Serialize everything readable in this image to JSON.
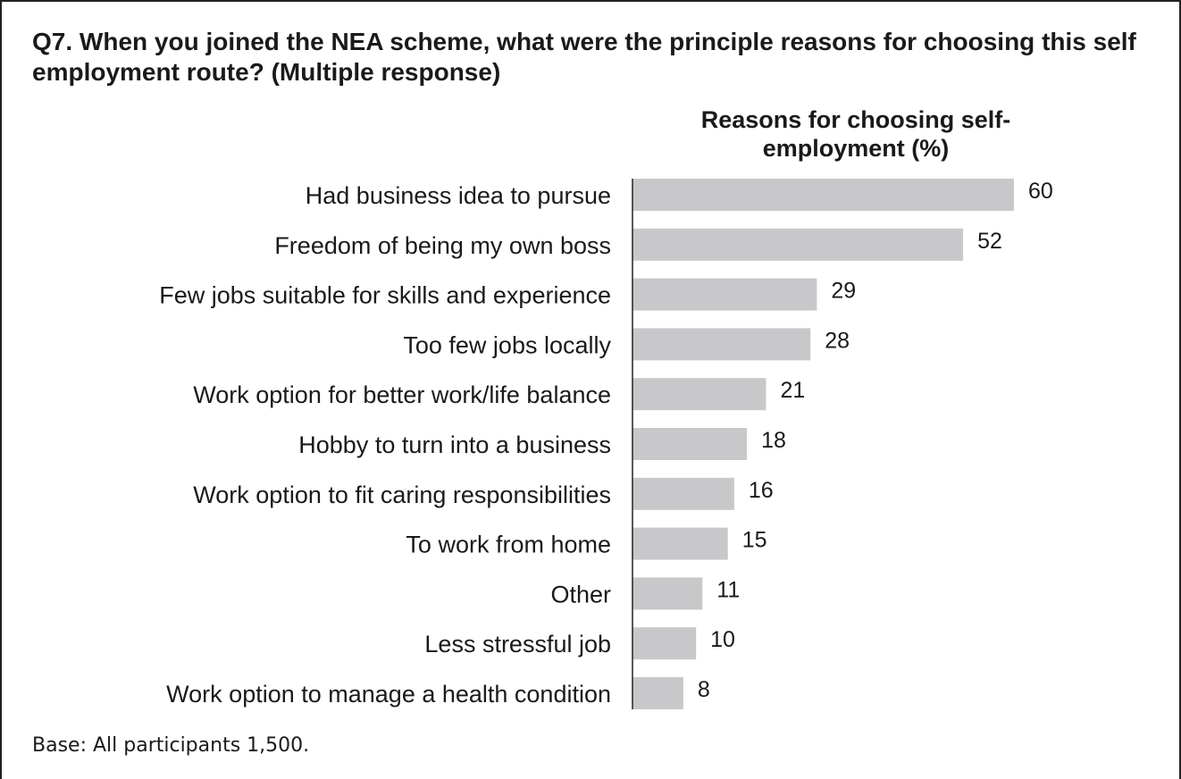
{
  "question": "Q7. When you joined the NEA scheme, what were the principle reasons for choosing this self employment route? (Multiple response)",
  "base_note": "Base: All participants 1,500.",
  "colors": {
    "bar": "#c8c8ca",
    "axis": "#222222",
    "text": "#1a1a1a"
  },
  "chart_data": {
    "type": "bar",
    "orientation": "horizontal",
    "title": "Reasons for choosing self-employment (%)",
    "categories": [
      "Had business idea to pursue",
      "Freedom of being my own boss",
      "Few jobs suitable for skills and experience",
      "Too few jobs locally",
      "Work option for better work/life balance",
      "Hobby to turn into a business",
      "Work option to fit caring responsibilities",
      "To work from home",
      "Other",
      "Less stressful job",
      "Work option to manage a health condition"
    ],
    "values": [
      60,
      52,
      29,
      28,
      21,
      18,
      16,
      15,
      11,
      10,
      8
    ],
    "xlim": [
      0,
      60
    ],
    "grid": false,
    "legend": "none"
  }
}
